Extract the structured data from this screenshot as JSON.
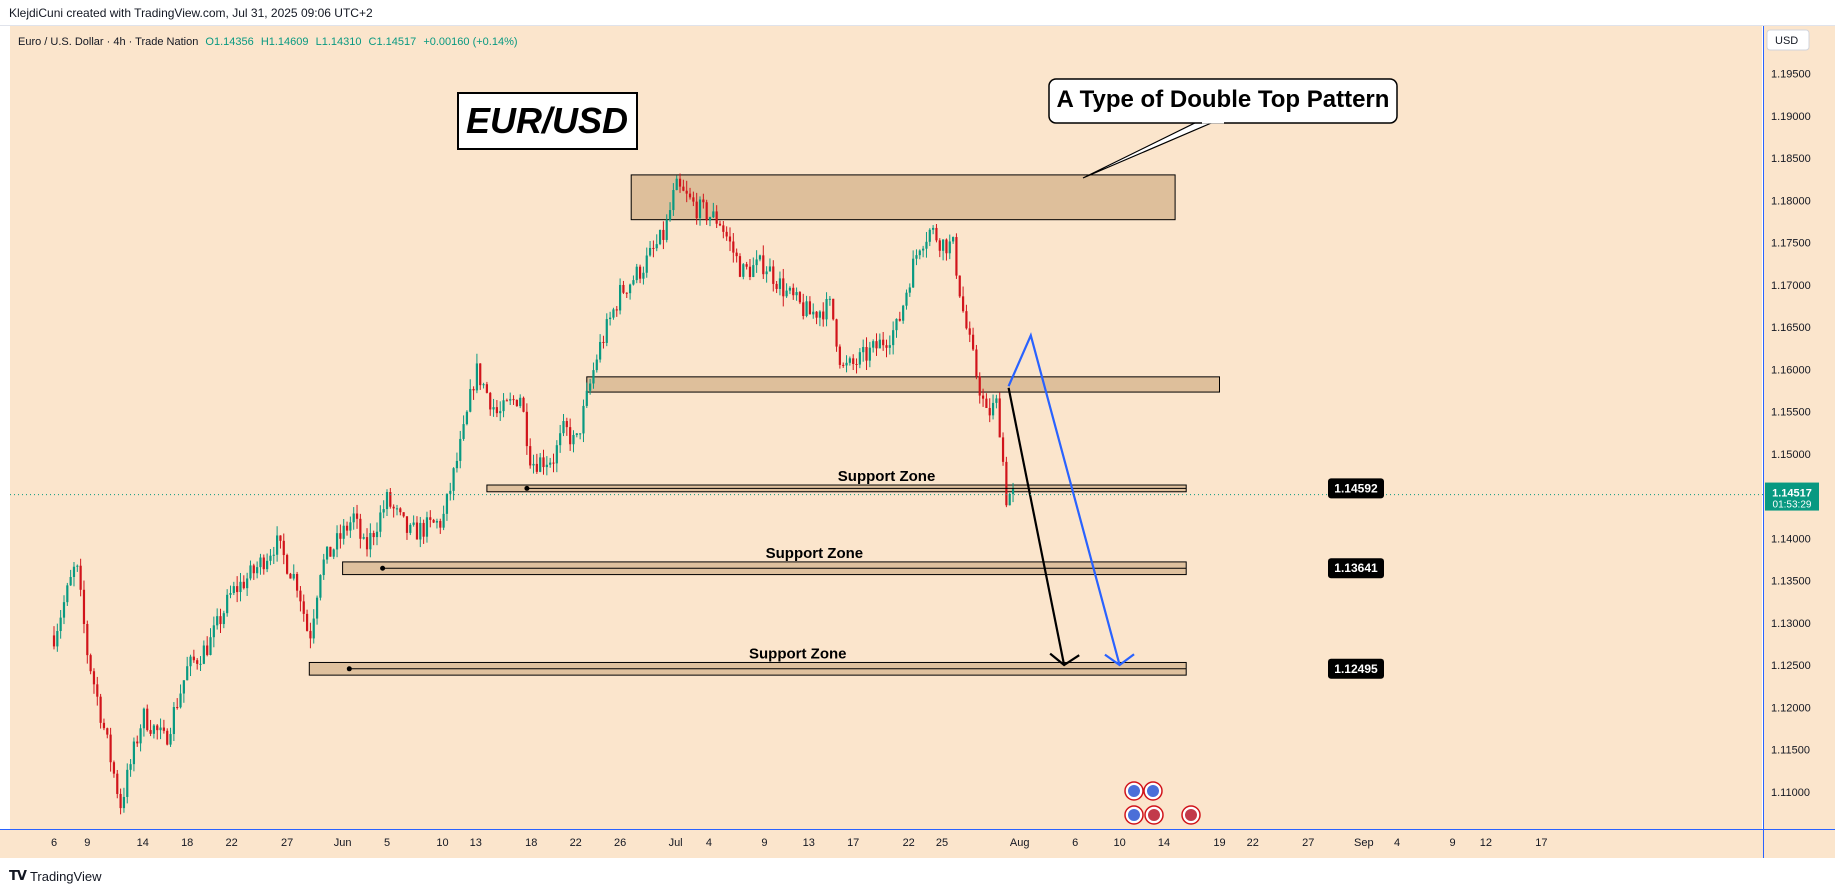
{
  "header": {
    "text": "KlejdiCuni created with TradingView.com, Jul 31, 2025 09:06 UTC+2"
  },
  "footer": {
    "brand": "TradingView"
  },
  "colors": {
    "background": "#fbe5cc",
    "up": "#089981",
    "down": "#d1141b",
    "zone": "#d8b892",
    "blue": "#2962ff",
    "black": "#000000",
    "last_price": "#089981"
  },
  "chart_data": {
    "type": "candlestick",
    "symbol": "Euro / U.S. Dollar · 4h · Trade Nation",
    "ohlc": {
      "open": "O1.14356",
      "high": "H1.14609",
      "low": "L1.14310",
      "close": "C1.14517",
      "change": "+0.00160 (+0.14%)"
    },
    "currency": "USD",
    "title": "EUR/USD",
    "callout": "A Type of Double Top Pattern",
    "x_ticks": [
      "6",
      "9",
      "14",
      "18",
      "22",
      "27",
      "Jun",
      "5",
      "10",
      "13",
      "18",
      "22",
      "26",
      "Jul",
      "4",
      "9",
      "13",
      "17",
      "22",
      "25",
      "Aug",
      "6",
      "10",
      "14",
      "19",
      "22",
      "27",
      "Sep",
      "4",
      "9",
      "12",
      "17"
    ],
    "y_ticks": [
      "1.19500",
      "1.19000",
      "1.18500",
      "1.18000",
      "1.17500",
      "1.17000",
      "1.16500",
      "1.16000",
      "1.15500",
      "1.15000",
      "1.14500",
      "1.14000",
      "1.13500",
      "1.13000",
      "1.12500",
      "1.12000",
      "1.11500",
      "1.11000"
    ],
    "ylim": [
      1.106,
      1.1985
    ],
    "last_price": {
      "value": "1.14517",
      "countdown": "01:53:29",
      "y": 1.14517
    },
    "series_path": [
      [
        "May 6",
        1.1285
      ],
      [
        "May 8",
        1.137
      ],
      [
        "May 9",
        1.1265
      ],
      [
        "May 12",
        1.1085
      ],
      [
        "May 14",
        1.119
      ],
      [
        "May 16",
        1.116
      ],
      [
        "May 18",
        1.1245
      ],
      [
        "May 20",
        1.1275
      ],
      [
        "May 22",
        1.1335
      ],
      [
        "May 24",
        1.136
      ],
      [
        "May 26",
        1.1395
      ],
      [
        "May 28",
        1.1345
      ],
      [
        "May 29",
        1.128
      ],
      [
        "May 30",
        1.1365
      ],
      [
        "Jun 2",
        1.1425
      ],
      [
        "Jun 3",
        1.1385
      ],
      [
        "Jun 5",
        1.1445
      ],
      [
        "Jun 7",
        1.1405
      ],
      [
        "Jun 10",
        1.142
      ],
      [
        "Jun 12",
        1.153
      ],
      [
        "Jun 13",
        1.16
      ],
      [
        "Jun 15",
        1.1545
      ],
      [
        "Jun 17",
        1.157
      ],
      [
        "Jun 18",
        1.149
      ],
      [
        "Jun 20",
        1.1495
      ],
      [
        "Jun 21",
        1.153
      ],
      [
        "Jun 22",
        1.151
      ],
      [
        "Jun 24",
        1.162
      ],
      [
        "Jun 26",
        1.169
      ],
      [
        "Jun 28",
        1.172
      ],
      [
        "Jun 30",
        1.176
      ],
      [
        "Jul 1",
        1.1815
      ],
      [
        "Jul 3",
        1.179
      ],
      [
        "Jul 5",
        1.1775
      ],
      [
        "Jul 7",
        1.1715
      ],
      [
        "Jul 9",
        1.1725
      ],
      [
        "Jul 11",
        1.169
      ],
      [
        "Jul 13",
        1.1665
      ],
      [
        "Jul 15",
        1.1675
      ],
      [
        "Jul 16",
        1.16
      ],
      [
        "Jul 17",
        1.1605
      ],
      [
        "Jul 19",
        1.1625
      ],
      [
        "Jul 21",
        1.165
      ],
      [
        "Jul 22",
        1.1705
      ],
      [
        "Jul 23",
        1.175
      ],
      [
        "Jul 24",
        1.1765
      ],
      [
        "Jul 25",
        1.175
      ],
      [
        "Jul 26",
        1.1745
      ],
      [
        "Jul 27",
        1.166
      ],
      [
        "Jul 28",
        1.16
      ],
      [
        "Jul 29",
        1.1545
      ],
      [
        "Jul 30",
        1.156
      ],
      [
        "Jul 31",
        1.142
      ],
      [
        "Jul 31",
        1.14517
      ]
    ],
    "zones": [
      {
        "label": "",
        "y_low": 1.1777,
        "y_high": 1.183,
        "from": "Jun 27",
        "to": "Aug 15"
      },
      {
        "label": "",
        "y_low": 1.1573,
        "y_high": 1.1591,
        "from": "Jun 23",
        "to": "Aug 19"
      },
      {
        "label": "Support Zone",
        "y_low": 1.1455,
        "y_high": 1.1463,
        "from": "Jun 14",
        "to": "Aug 16",
        "value": "1.14592"
      },
      {
        "label": "Support Zone",
        "y_low": 1.1357,
        "y_high": 1.1372,
        "from": "Jun 1",
        "to": "Aug 16",
        "value": "1.13641"
      },
      {
        "label": "Support Zone",
        "y_low": 1.1238,
        "y_high": 1.1253,
        "from": "May 29",
        "to": "Aug 16",
        "value": "1.12495"
      }
    ],
    "arrows": [
      {
        "color": "black",
        "points": [
          [
            "Jul 31",
            1.1578
          ],
          [
            "Aug 5",
            1.125
          ]
        ]
      },
      {
        "color": "blue",
        "points": [
          [
            "Jul 31",
            1.158
          ],
          [
            "Aug 2",
            1.164
          ],
          [
            "Aug 10",
            1.125
          ]
        ]
      }
    ]
  }
}
